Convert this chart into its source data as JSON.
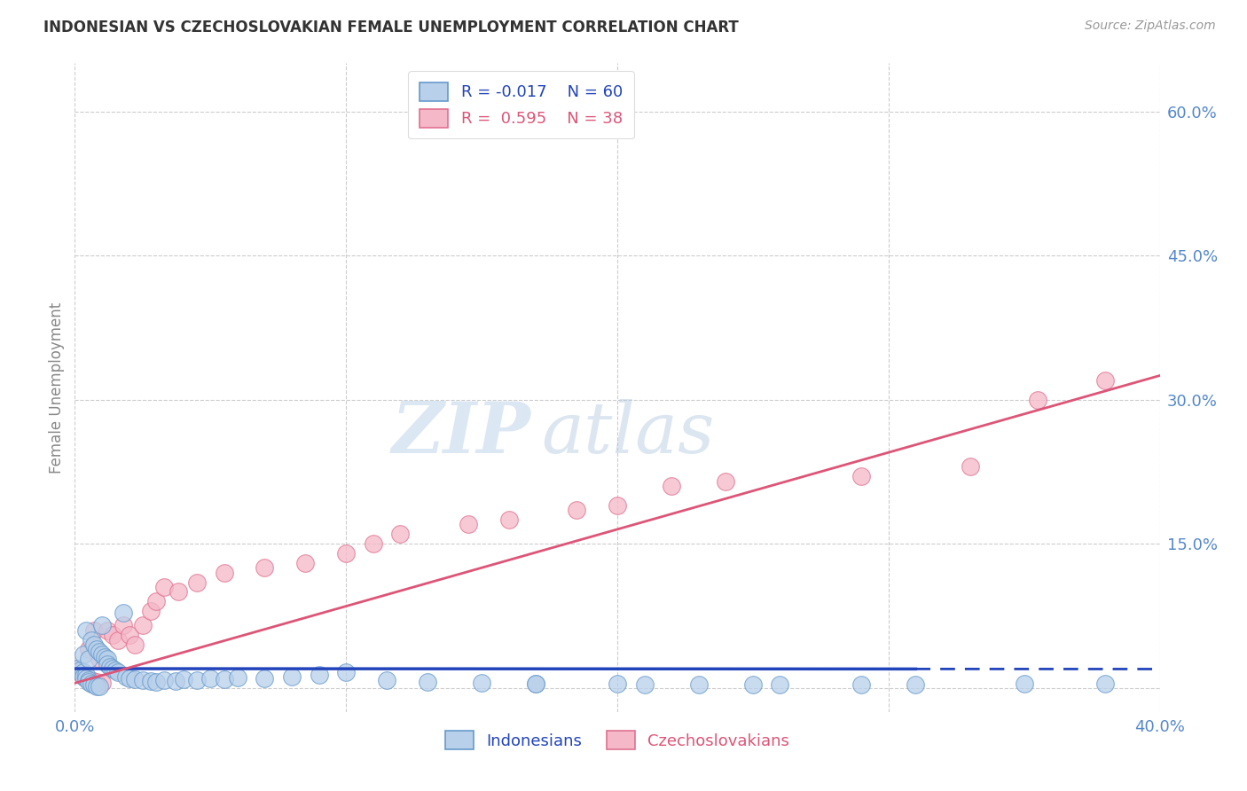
{
  "title": "INDONESIAN VS CZECHOSLOVAKIAN FEMALE UNEMPLOYMENT CORRELATION CHART",
  "source": "Source: ZipAtlas.com",
  "ylabel": "Female Unemployment",
  "color_indonesian_fill": "#b8d0ea",
  "color_indonesian_edge": "#6699cc",
  "color_czechoslovakian_fill": "#f4b8c8",
  "color_czechoslovakian_edge": "#e07090",
  "color_line_indonesian": "#2244bb",
  "color_line_czechoslovakian": "#dd5577",
  "watermark_zip": "ZIP",
  "watermark_atlas": "atlas",
  "bg_color": "#ffffff",
  "grid_color": "#cccccc",
  "xlim": [
    0.0,
    0.4
  ],
  "ylim": [
    -0.025,
    0.65
  ],
  "r_ind": -0.017,
  "n_ind": 60,
  "r_czech": 0.595,
  "n_czech": 38,
  "ind_x": [
    0.001,
    0.002,
    0.003,
    0.003,
    0.003,
    0.004,
    0.004,
    0.004,
    0.005,
    0.005,
    0.005,
    0.006,
    0.006,
    0.007,
    0.007,
    0.008,
    0.008,
    0.009,
    0.009,
    0.01,
    0.01,
    0.011,
    0.012,
    0.012,
    0.013,
    0.014,
    0.015,
    0.016,
    0.018,
    0.019,
    0.02,
    0.022,
    0.025,
    0.028,
    0.03,
    0.033,
    0.037,
    0.04,
    0.045,
    0.05,
    0.055,
    0.06,
    0.07,
    0.08,
    0.09,
    0.1,
    0.115,
    0.13,
    0.15,
    0.17,
    0.2,
    0.23,
    0.26,
    0.29,
    0.17,
    0.21,
    0.25,
    0.31,
    0.35,
    0.38
  ],
  "ind_y": [
    0.02,
    0.018,
    0.016,
    0.035,
    0.012,
    0.014,
    0.01,
    0.06,
    0.008,
    0.03,
    0.006,
    0.05,
    0.004,
    0.045,
    0.003,
    0.04,
    0.002,
    0.038,
    0.002,
    0.035,
    0.065,
    0.032,
    0.03,
    0.025,
    0.022,
    0.02,
    0.018,
    0.016,
    0.078,
    0.012,
    0.01,
    0.009,
    0.008,
    0.007,
    0.006,
    0.008,
    0.007,
    0.009,
    0.008,
    0.01,
    0.009,
    0.011,
    0.01,
    0.012,
    0.014,
    0.016,
    0.008,
    0.006,
    0.005,
    0.004,
    0.004,
    0.003,
    0.003,
    0.003,
    0.004,
    0.003,
    0.003,
    0.003,
    0.004,
    0.004
  ],
  "czech_x": [
    0.001,
    0.002,
    0.003,
    0.004,
    0.005,
    0.006,
    0.007,
    0.008,
    0.009,
    0.01,
    0.012,
    0.014,
    0.016,
    0.018,
    0.02,
    0.022,
    0.025,
    0.028,
    0.03,
    0.033,
    0.038,
    0.045,
    0.055,
    0.07,
    0.085,
    0.1,
    0.11,
    0.12,
    0.145,
    0.16,
    0.185,
    0.2,
    0.22,
    0.24,
    0.29,
    0.33,
    0.355,
    0.38
  ],
  "czech_y": [
    0.02,
    0.016,
    0.012,
    0.01,
    0.04,
    0.008,
    0.06,
    0.006,
    0.03,
    0.005,
    0.06,
    0.055,
    0.05,
    0.065,
    0.055,
    0.045,
    0.065,
    0.08,
    0.09,
    0.105,
    0.1,
    0.11,
    0.12,
    0.125,
    0.13,
    0.14,
    0.15,
    0.16,
    0.17,
    0.175,
    0.185,
    0.19,
    0.21,
    0.215,
    0.22,
    0.23,
    0.3,
    0.32
  ],
  "ind_line_x": [
    0.0,
    0.31,
    0.4
  ],
  "ind_line_y_intercept": 0.02,
  "ind_line_slope": -0.001,
  "czech_line_x": [
    0.0,
    0.4
  ],
  "czech_line_y_start": 0.005,
  "czech_line_y_end": 0.325
}
